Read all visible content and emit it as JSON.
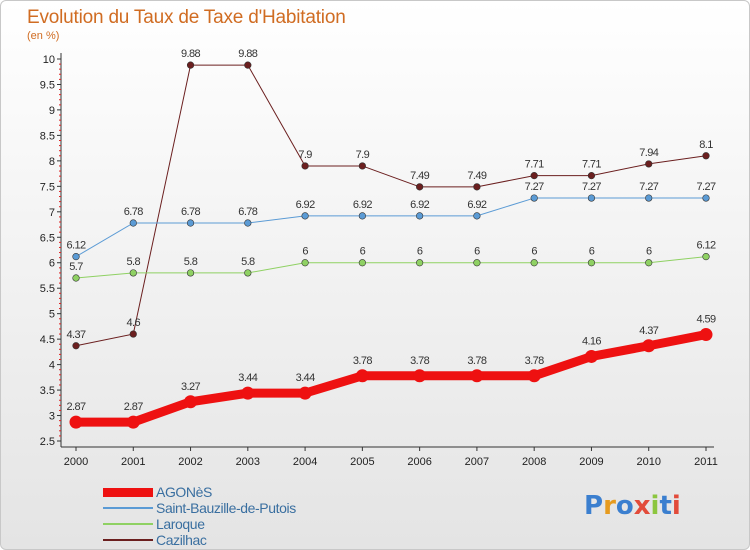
{
  "title": "Evolution du Taux de Taxe d'Habitation",
  "unit": "(en %)",
  "logo": {
    "text": "Proxiti",
    "colors": [
      "#3b7fcf",
      "#e69b1f",
      "#3b7fcf",
      "#e24b3a",
      "#8cc63f",
      "#3b7fcf",
      "#e24b3a"
    ]
  },
  "chart_data": {
    "type": "line",
    "x": [
      "2000",
      "2001",
      "2002",
      "2003",
      "2004",
      "2005",
      "2006",
      "2007",
      "2008",
      "2009",
      "2010",
      "2011"
    ],
    "ylim": [
      2.5,
      10
    ],
    "yticks": [
      "2.5",
      "3",
      "3.5",
      "4",
      "4.5",
      "5",
      "5.5",
      "6",
      "6.5",
      "7",
      "7.5",
      "8",
      "8.5",
      "9",
      "9.5",
      "10"
    ],
    "grid": false,
    "legend_position": "bottom-left",
    "series": [
      {
        "name": "Cazilhac",
        "color": "#6b1f1f",
        "width": 1,
        "values": [
          4.37,
          4.6,
          9.88,
          9.88,
          7.9,
          7.9,
          7.49,
          7.49,
          7.71,
          7.71,
          7.94,
          8.1
        ],
        "labels": [
          "4.37",
          "4.6",
          "9.88",
          "9.88",
          "7.9",
          "7.9",
          "7.49",
          "7.49",
          "7.71",
          "7.71",
          "7.94",
          "8.1"
        ]
      },
      {
        "name": "Saint-Bauzille-de-Putois",
        "color": "#5b9bd5",
        "width": 1,
        "values": [
          6.12,
          6.78,
          6.78,
          6.78,
          6.92,
          6.92,
          6.92,
          6.92,
          7.27,
          7.27,
          7.27,
          7.27
        ],
        "labels": [
          "6.12",
          "6.78",
          "6.78",
          "6.78",
          "6.92",
          "6.92",
          "6.92",
          "6.92",
          "7.27",
          "7.27",
          "7.27",
          "7.27"
        ]
      },
      {
        "name": "Laroque",
        "color": "#8fd163",
        "width": 1,
        "values": [
          5.7,
          5.8,
          5.8,
          5.8,
          6,
          6,
          6,
          6,
          6,
          6,
          6,
          6.12
        ],
        "labels": [
          "5.7",
          "5.8",
          "5.8",
          "5.8",
          "6",
          "6",
          "6",
          "6",
          "6",
          "6",
          "6",
          "6.12"
        ]
      },
      {
        "name": "AGONèS",
        "color": "#ee1111",
        "width": 9,
        "values": [
          2.87,
          2.87,
          3.27,
          3.44,
          3.44,
          3.78,
          3.78,
          3.78,
          3.78,
          4.16,
          4.37,
          4.59
        ],
        "labels": [
          "2.87",
          "2.87",
          "3.27",
          "3.44",
          "3.44",
          "3.78",
          "3.78",
          "3.78",
          "3.78",
          "4.16",
          "4.37",
          "4.59"
        ]
      }
    ]
  },
  "legend_order": [
    "AGONèS",
    "Saint-Bauzille-de-Putois",
    "Laroque",
    "Cazilhac"
  ]
}
